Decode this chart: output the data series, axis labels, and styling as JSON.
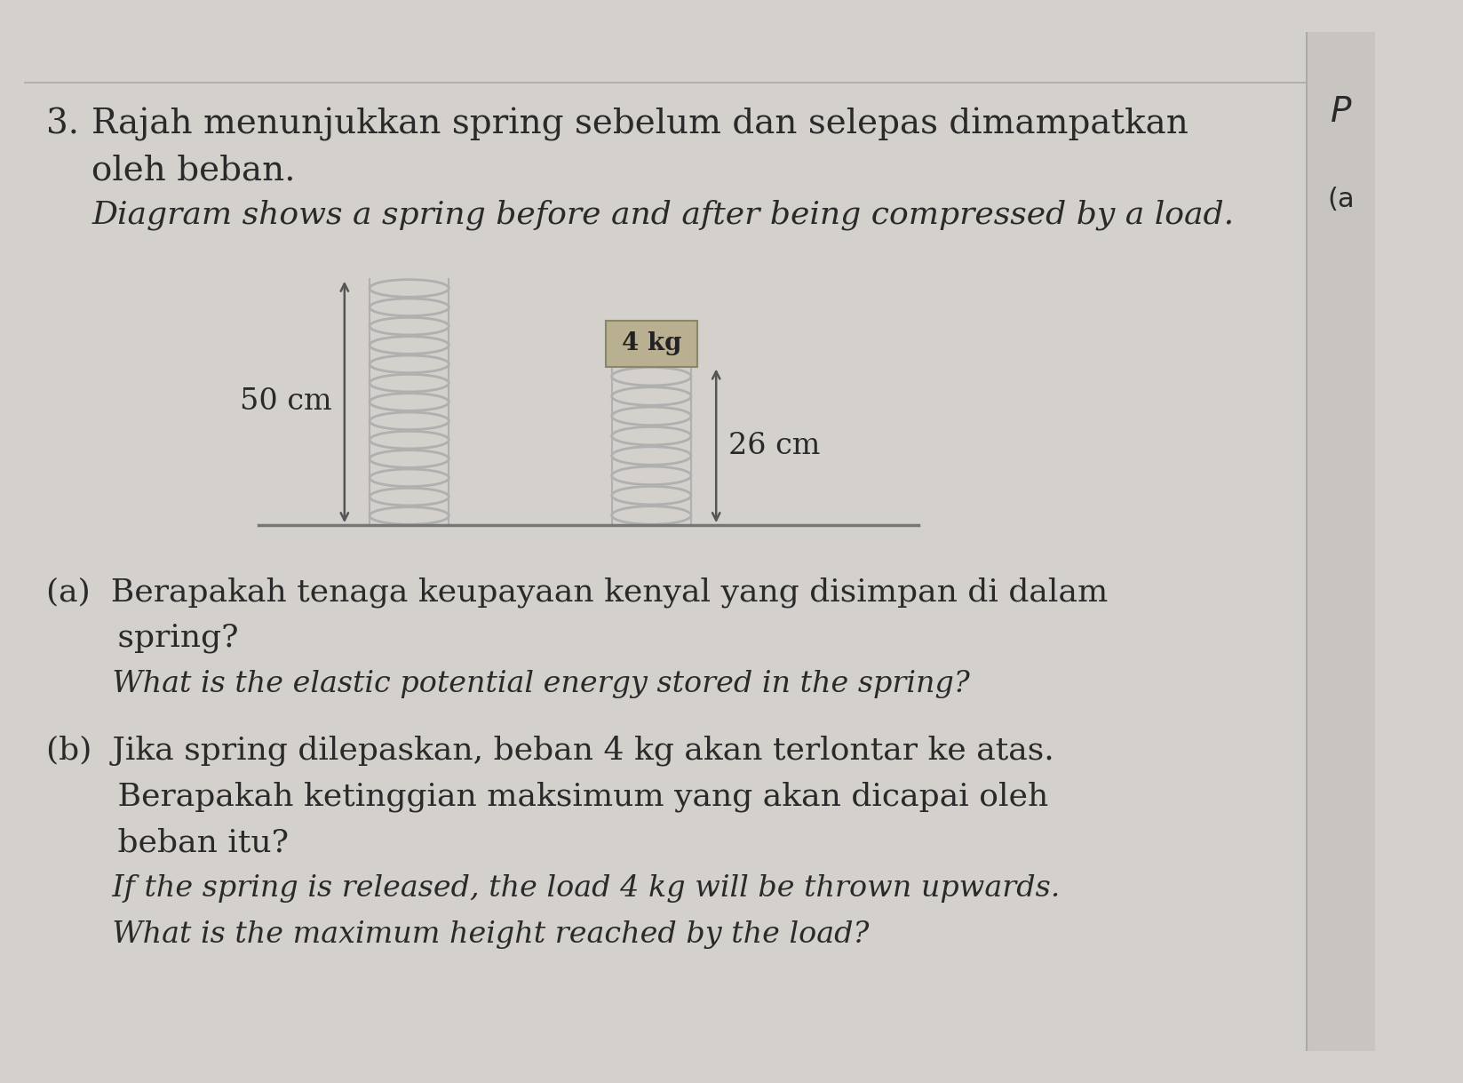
{
  "page_bg": "#d4d0cc",
  "right_col_bg": "#c8c4c0",
  "title_number": "3.",
  "title_malay": "Rajah menunjukkan spring sebelum dan selepas dimampatkan",
  "title_malay2": "oleh beban.",
  "title_english": "Diagram shows a spring before and after being compressed by a load.",
  "right_label_P": "P",
  "right_label_a": "(a",
  "spring1_label": "50 cm",
  "spring2_label": "26 cm",
  "load_label": "4 kg",
  "part_a_malay1": "(a)  Berapakah tenaga keupayaan kenyal yang disimpan di dalam",
  "part_a_malay2": "       spring?",
  "part_a_english": "       What is the elastic potential energy stored in the spring?",
  "part_b_malay1": "(b)  Jika spring dilepaskan, beban 4 kg akan terlontar ke atas.",
  "part_b_malay2": "       Berapakah ketinggian maksimum yang akan dicapai oleh",
  "part_b_malay3": "       beban itu?",
  "part_b_english1": "       If the spring is released, the load 4 kg will be thrown upwards.",
  "part_b_english2": "       What is the maximum height reached by the load?",
  "spring1_coils": 13,
  "spring2_coils": 8,
  "coil_color": "#b0b0b0",
  "arrow_color": "#555555",
  "text_color": "#2a2a2a",
  "line_color": "#888888",
  "load_face": "#b8b090",
  "load_edge": "#888866"
}
